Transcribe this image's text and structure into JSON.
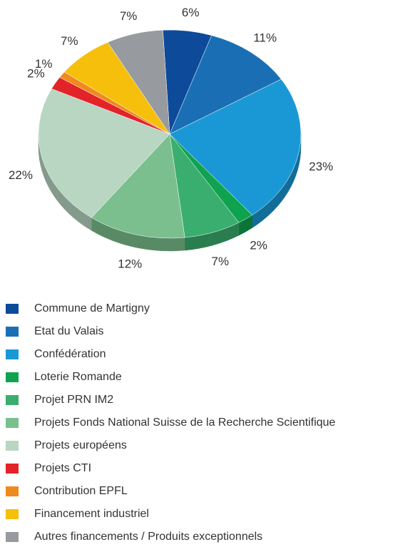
{
  "chart_data": {
    "type": "pie",
    "categories": [
      "Commune de Martigny",
      "Etat du Valais",
      "Confédération",
      "Loterie Romande",
      "Projet PRN IM2",
      "Projets Fonds National Suisse de la Recherche Scientifique",
      "Projets européens",
      "Projets CTI",
      "Contribution EPFL",
      "Financement industriel",
      "Autres financements / Produits exceptionnels"
    ],
    "values": [
      6,
      11,
      23,
      2,
      7,
      12,
      22,
      2,
      1,
      7,
      7
    ],
    "value_labels": [
      "6%",
      "11%",
      "23%",
      "2%",
      "7%",
      "12%",
      "22%",
      "2%",
      "1%",
      "7%",
      "7%"
    ],
    "colors": [
      "#0d4a9a",
      "#1a6fb4",
      "#1a98d5",
      "#0fa34f",
      "#3aae6e",
      "#7bbf8e",
      "#b8d6c2",
      "#e3232a",
      "#ef8a1f",
      "#f5bf0c",
      "#979a9e"
    ],
    "legend": "bottom"
  }
}
